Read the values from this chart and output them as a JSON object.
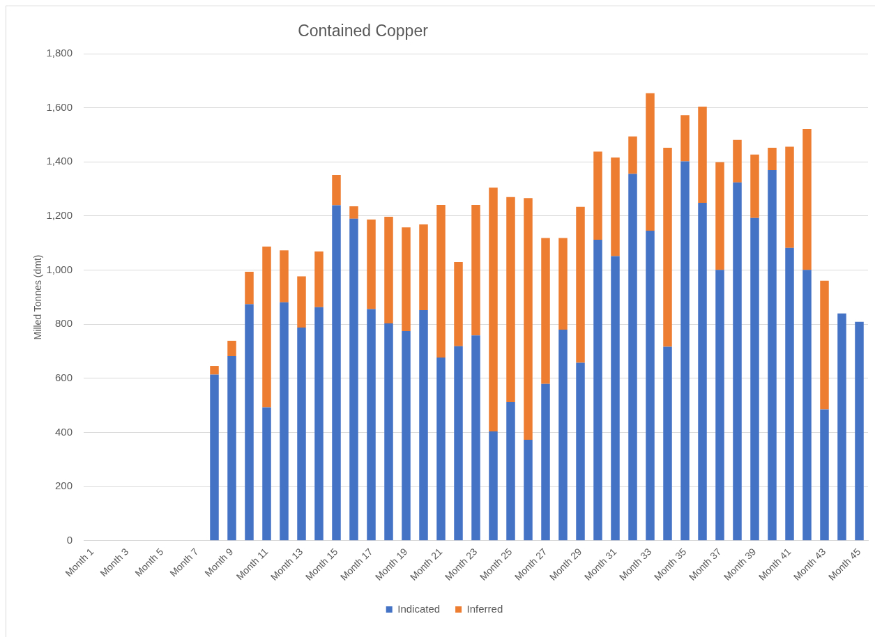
{
  "chart_data": {
    "type": "bar",
    "title": "Contained Copper",
    "ylabel": "Milled Tonnes (dmt)",
    "categories": [
      "Month 1",
      null,
      "Month 3",
      null,
      "Month 5",
      null,
      "Month 7",
      null,
      "Month 9",
      null,
      "Month 11",
      null,
      "Month 13",
      null,
      "Month 15",
      null,
      "Month 17",
      null,
      "Month 19",
      null,
      "Month 21",
      null,
      "Month 23",
      null,
      "Month 25",
      null,
      "Month 27",
      null,
      "Month 29",
      null,
      "Month 31",
      null,
      "Month 33",
      null,
      "Month 35",
      null,
      "Month 37",
      null,
      "Month 39",
      null,
      "Month 41",
      null,
      "Month 43",
      null,
      "Month 45"
    ],
    "series": [
      {
        "name": "Indicated",
        "color": "#4472c4",
        "values": [
          null,
          null,
          null,
          null,
          null,
          null,
          null,
          614,
          682,
          874,
          493,
          881,
          788,
          863,
          1240,
          1190,
          856,
          803,
          775,
          852,
          677,
          719,
          759,
          404,
          512,
          373,
          580,
          780,
          658,
          1112,
          1052,
          1356,
          1146,
          717,
          1402,
          1249,
          1001,
          1324,
          1193,
          1370,
          1082,
          1001,
          485,
          840,
          809
        ]
      },
      {
        "name": "Inferred",
        "color": "#ed7d31",
        "values": [
          null,
          null,
          null,
          null,
          null,
          null,
          null,
          32,
          57,
          120,
          594,
          192,
          189,
          206,
          112,
          46,
          331,
          394,
          383,
          317,
          564,
          311,
          482,
          901,
          758,
          893,
          539,
          339,
          576,
          326,
          364,
          138,
          508,
          735,
          171,
          355,
          398,
          157,
          234,
          82,
          374,
          521,
          476,
          null,
          null
        ]
      }
    ],
    "stacked": true,
    "ylim": [
      0,
      1800
    ],
    "yticks": [
      0,
      200,
      400,
      600,
      800,
      {
        "value": 1000,
        "label": "1,000"
      },
      {
        "value": 1200,
        "label": "1,200"
      },
      {
        "value": 1400,
        "label": "1,400"
      },
      {
        "value": 1600,
        "label": "1,600"
      },
      {
        "value": 1800,
        "label": "1,800"
      }
    ],
    "grid": "y",
    "legend": "bottom"
  }
}
